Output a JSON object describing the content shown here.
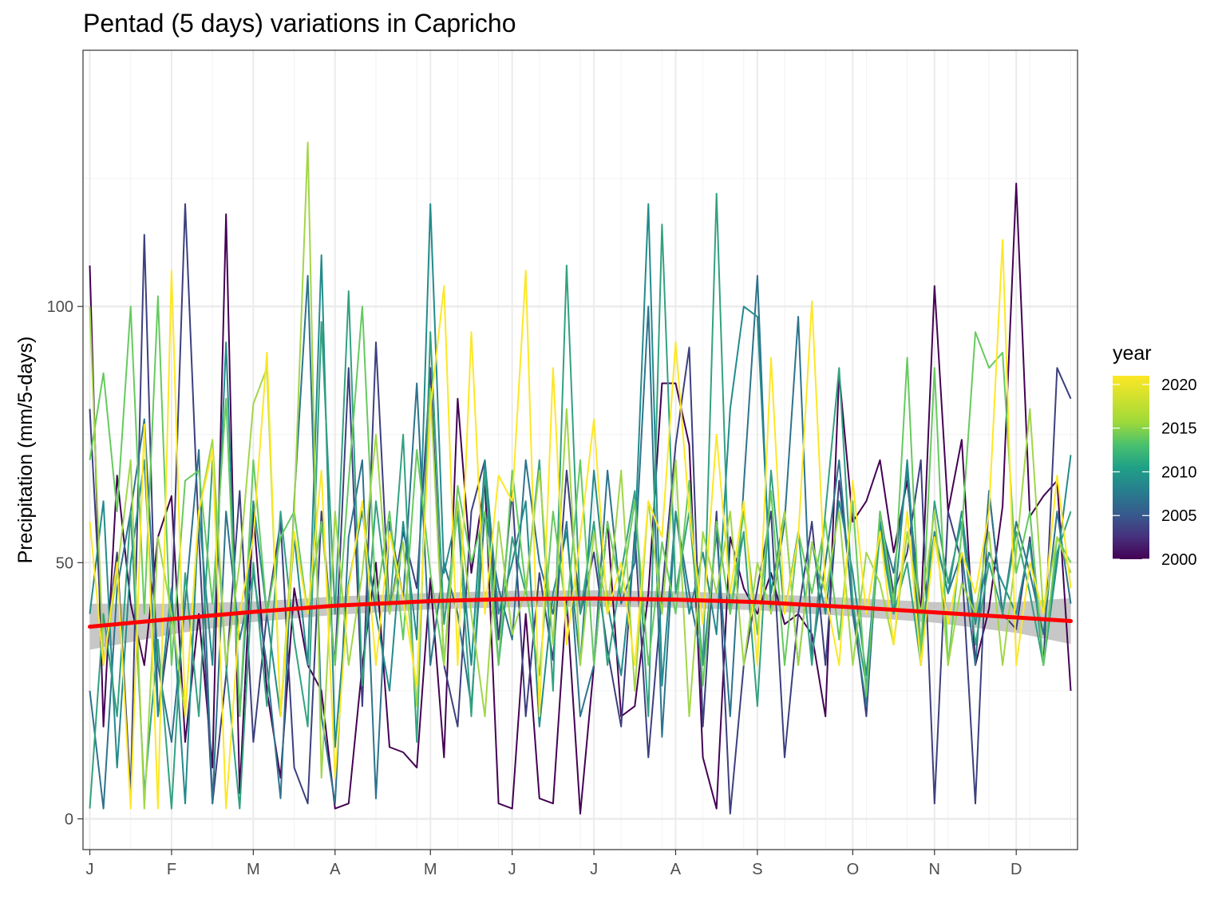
{
  "chart_data": {
    "type": "line",
    "title": "Pentad (5 days) variations in Capricho",
    "xlabel": "",
    "ylabel": "Precipitation (mm/5-days)",
    "x_tick_labels": [
      "J",
      "F",
      "M",
      "A",
      "M",
      "J",
      "J",
      "A",
      "S",
      "O",
      "N",
      "D"
    ],
    "x_tick_positions": [
      1,
      7,
      13,
      19,
      26,
      32,
      38,
      44,
      50,
      57,
      63,
      69
    ],
    "xlim": [
      0.5,
      73.5
    ],
    "y_ticks": [
      0,
      50,
      100
    ],
    "ylim": [
      -6,
      150
    ],
    "grid": true,
    "legend": {
      "title": "year",
      "position": "right",
      "type": "colorbar",
      "range": [
        2000,
        2021
      ],
      "breaks": [
        2000,
        2005,
        2010,
        2015,
        2020
      ],
      "palette": [
        "#440154",
        "#3b528b",
        "#21908c",
        "#5dc863",
        "#fde725"
      ]
    },
    "n_series": 22,
    "x_pentads": 73,
    "series_note": "22 yearly pentad series (2000-2021); values range ~1-145 mm",
    "series": [
      {
        "name": "2000",
        "values": [
          108,
          18,
          67,
          42,
          30,
          55,
          63,
          15,
          40,
          10,
          118,
          5,
          60,
          25,
          8,
          45,
          30,
          25,
          2,
          3,
          30,
          50,
          14,
          13,
          10,
          47,
          12,
          82,
          48,
          66,
          3,
          2,
          40,
          4,
          3,
          43,
          1,
          30,
          58,
          20,
          22,
          44,
          85,
          85,
          73,
          12,
          2,
          55,
          45,
          40,
          48,
          38,
          40,
          36,
          20,
          87,
          58,
          62,
          70,
          52,
          66,
          40,
          104,
          60,
          74,
          30,
          41,
          61,
          124,
          59,
          63,
          66,
          25
        ]
      },
      {
        "name": "2004",
        "values": [
          80,
          30,
          52,
          5,
          114,
          20,
          40,
          120,
          55,
          3,
          28,
          64,
          15,
          40,
          58,
          10,
          3,
          60,
          30,
          88,
          22,
          93,
          40,
          56,
          45,
          88,
          30,
          18,
          60,
          70,
          35,
          64,
          20,
          48,
          31,
          68,
          40,
          52,
          33,
          18,
          56,
          12,
          44,
          73,
          92,
          18,
          60,
          1,
          30,
          45,
          60,
          12,
          40,
          58,
          30,
          66,
          42,
          20,
          60,
          44,
          52,
          70,
          3,
          60,
          50,
          3,
          64,
          40,
          37,
          55,
          30,
          88,
          82
        ]
      },
      {
        "name": "2008",
        "values": [
          25,
          2,
          45,
          60,
          78,
          30,
          15,
          42,
          72,
          3,
          60,
          35,
          48,
          30,
          4,
          62,
          106,
          20,
          3,
          55,
          70,
          4,
          58,
          43,
          85,
          30,
          50,
          40,
          22,
          60,
          45,
          35,
          70,
          50,
          40,
          58,
          20,
          30,
          68,
          42,
          50,
          100,
          16,
          60,
          44,
          30,
          56,
          20,
          65,
          106,
          40,
          58,
          98,
          32,
          50,
          70,
          40,
          22,
          58,
          48,
          68,
          30,
          56,
          44,
          52,
          30,
          64,
          40,
          58,
          48,
          36,
          60,
          42
        ]
      },
      {
        "name": "2010",
        "values": [
          40,
          62,
          10,
          50,
          70,
          20,
          45,
          3,
          60,
          30,
          93,
          20,
          62,
          40,
          20,
          55,
          30,
          110,
          14,
          46,
          60,
          40,
          25,
          58,
          35,
          120,
          48,
          60,
          30,
          70,
          40,
          50,
          62,
          18,
          44,
          56,
          30,
          68,
          42,
          28,
          54,
          120,
          26,
          60,
          40,
          52,
          36,
          80,
          100,
          98,
          44,
          60,
          30,
          54,
          40,
          62,
          48,
          28,
          58,
          40,
          70,
          34,
          56,
          44,
          60,
          38,
          52,
          46,
          40,
          54,
          30,
          50,
          71
        ]
      },
      {
        "name": "2012",
        "values": [
          2,
          40,
          20,
          60,
          5,
          35,
          2,
          48,
          20,
          70,
          30,
          2,
          50,
          22,
          60,
          35,
          18,
          97,
          40,
          103,
          26,
          62,
          40,
          75,
          15,
          95,
          38,
          60,
          20,
          68,
          30,
          55,
          44,
          70,
          25,
          108,
          40,
          58,
          30,
          48,
          64,
          20,
          116,
          44,
          60,
          30,
          122,
          40,
          56,
          22,
          68,
          40,
          56,
          30,
          60,
          88,
          42,
          26,
          56,
          40,
          50,
          30,
          62,
          46,
          58,
          34,
          50,
          40,
          56,
          44,
          30,
          52,
          60
        ]
      },
      {
        "name": "2016",
        "values": [
          70,
          87,
          60,
          100,
          40,
          102,
          30,
          66,
          68,
          42,
          82,
          20,
          70,
          40,
          55,
          60,
          40,
          58,
          30,
          66,
          100,
          42,
          60,
          35,
          72,
          48,
          30,
          65,
          50,
          60,
          30,
          68,
          45,
          28,
          60,
          40,
          70,
          30,
          58,
          44,
          62,
          30,
          54,
          40,
          66,
          26,
          58,
          40,
          60,
          36,
          64,
          30,
          56,
          44,
          58,
          35,
          62,
          24,
          60,
          42,
          90,
          32,
          88,
          30,
          56,
          95,
          88,
          91,
          48,
          60,
          30,
          55,
          50
        ]
      },
      {
        "name": "2018",
        "values": [
          100,
          30,
          48,
          70,
          2,
          55,
          40,
          20,
          60,
          74,
          30,
          50,
          81,
          88,
          20,
          60,
          132,
          8,
          60,
          30,
          48,
          75,
          40,
          54,
          22,
          84,
          30,
          62,
          40,
          20,
          58,
          36,
          45,
          68,
          34,
          80,
          30,
          56,
          40,
          68,
          25,
          62,
          40,
          70,
          20,
          56,
          44,
          60,
          30,
          50,
          40,
          60,
          30,
          54,
          44,
          60,
          30,
          52,
          46,
          34,
          56,
          40,
          60,
          30,
          46,
          40,
          56,
          30,
          52,
          80,
          40,
          55,
          48
        ]
      },
      {
        "name": "2021",
        "values": [
          58,
          30,
          50,
          2,
          77,
          2,
          107,
          20,
          60,
          72,
          2,
          40,
          55,
          91,
          20,
          56,
          40,
          68,
          8,
          45,
          62,
          30,
          56,
          43,
          26,
          80,
          104,
          30,
          95,
          40,
          67,
          62,
          107,
          20,
          88,
          34,
          55,
          78,
          40,
          50,
          30,
          62,
          55,
          93,
          60,
          38,
          75,
          44,
          62,
          30,
          90,
          40,
          55,
          101,
          44,
          30,
          66,
          40,
          56,
          34,
          60,
          30,
          55,
          38,
          52,
          44,
          60,
          113,
          30,
          50,
          40,
          67,
          45
        ]
      }
    ],
    "smooth_fit": {
      "name": "trend",
      "color": "#ff0000",
      "band_color": "#bdbdbd",
      "x": [
        1,
        7,
        13,
        19,
        26,
        32,
        38,
        44,
        50,
        57,
        63,
        69,
        73
      ],
      "y": [
        37.5,
        39.0,
        40.4,
        41.6,
        42.5,
        42.9,
        43.0,
        42.8,
        42.3,
        41.3,
        40.3,
        39.3,
        38.6
      ],
      "band_halfwidth": [
        4.5,
        3.0,
        2.0,
        1.8,
        1.6,
        1.6,
        1.6,
        1.6,
        1.6,
        1.8,
        2.0,
        3.0,
        4.5
      ]
    }
  }
}
